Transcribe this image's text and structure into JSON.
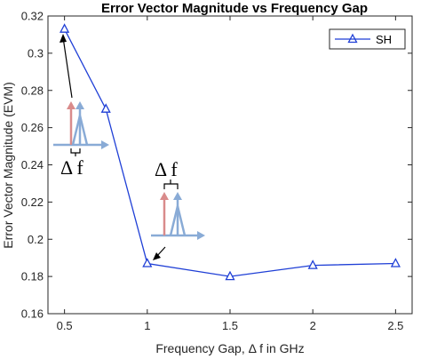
{
  "chart_data": {
    "type": "line",
    "title": "Error Vector Magnitude vs Frequency Gap",
    "xlabel": "Frequency Gap, Δ f in GHz",
    "ylabel": "Error Vector Magnitude (EVM)",
    "xlim": [
      0.4,
      2.6
    ],
    "ylim": [
      0.16,
      0.32
    ],
    "xticks": [
      "0.5",
      "1",
      "1.5",
      "2",
      "2.5"
    ],
    "yticks": [
      "0.16",
      "0.18",
      "0.2",
      "0.22",
      "0.24",
      "0.26",
      "0.28",
      "0.3",
      "0.32"
    ],
    "series": [
      {
        "name": "SH",
        "color": "#1f3fd6",
        "marker": "triangle",
        "x": [
          0.5,
          0.75,
          1.0,
          1.5,
          2.0,
          2.5
        ],
        "y": [
          0.313,
          0.27,
          0.187,
          0.18,
          0.186,
          0.187
        ]
      }
    ],
    "legend": "top-right",
    "grid": false,
    "annotations": [
      {
        "label": "Δ f"
      },
      {
        "label": "Δ f"
      }
    ]
  }
}
